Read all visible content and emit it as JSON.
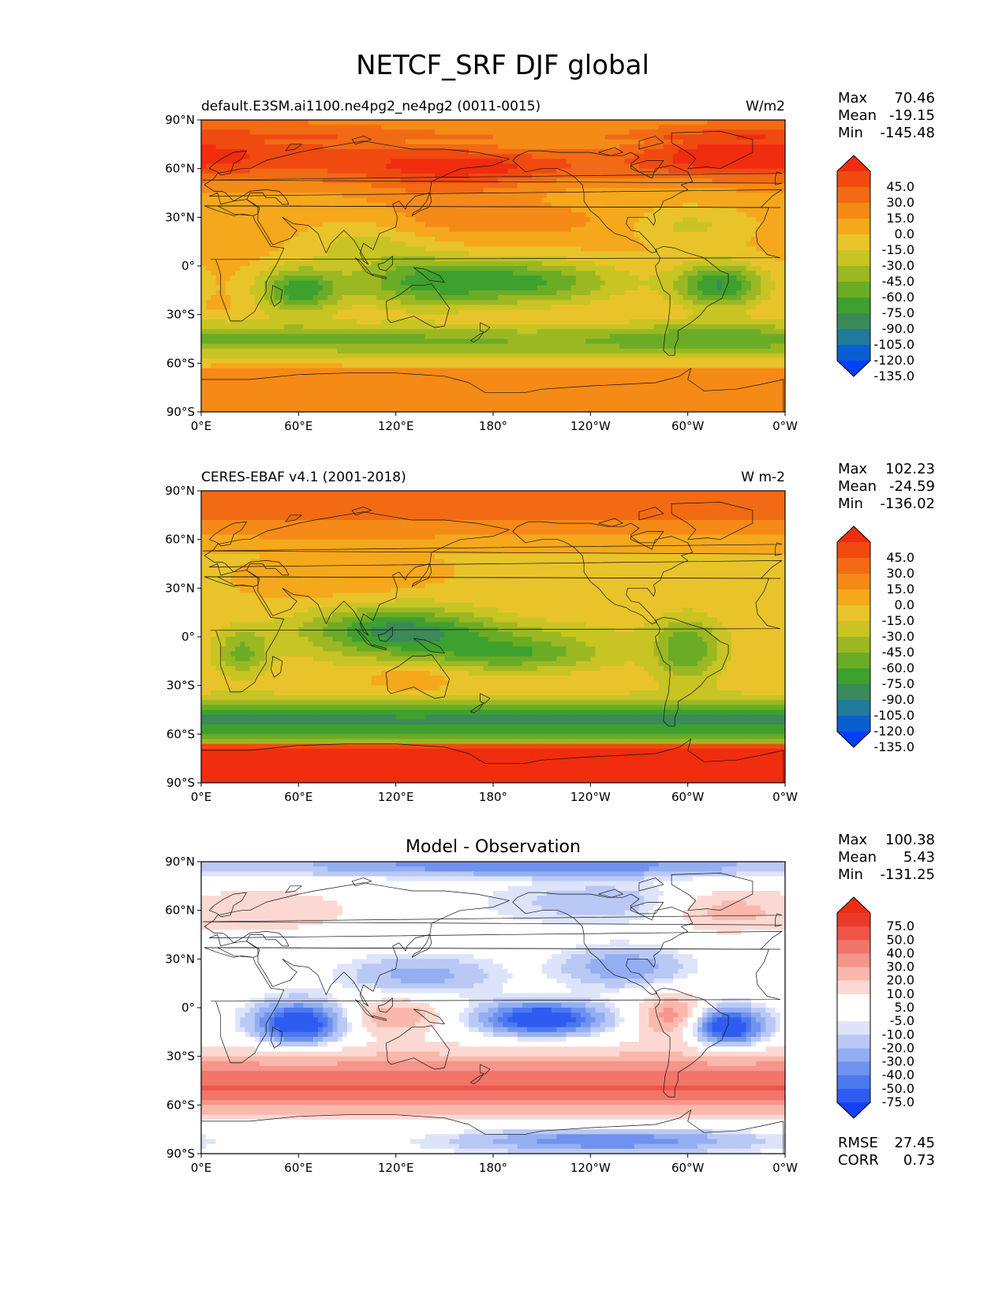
{
  "title": "NETCF_SRF DJF global",
  "colors": {
    "abs_levels": [
      "#0040ff",
      "#0a5fd0",
      "#1f7a9c",
      "#3a8a5a",
      "#3ea02e",
      "#6aac26",
      "#9bb823",
      "#c8c423",
      "#e8c42a",
      "#f5a81c",
      "#f58a17",
      "#f26a14",
      "#f04a11",
      "#f02d0e"
    ],
    "diff_levels": [
      "#1440f5",
      "#2f5cf0",
      "#4c78ee",
      "#6f92ef",
      "#94aef2",
      "#b9c8f5",
      "#dde4fa",
      "#ffffff",
      "#ffffff",
      "#fbd9d2",
      "#f9b8ab",
      "#f6958a",
      "#f2756a",
      "#ef5548",
      "#ec3a2a",
      "#f02d0e"
    ]
  },
  "panels": [
    {
      "id": "model",
      "left_title": "default.E3SM.ai1100.ne4pg2_ne4pg2 (0011-0015)",
      "right_title": "W/m2",
      "center_title": "",
      "stats": [
        [
          "Max",
          "70.46"
        ],
        [
          "Mean",
          "-19.15"
        ],
        [
          "Min",
          "-145.48"
        ]
      ],
      "extra_stats": [],
      "colorbar_labels": [
        "45.0",
        "30.0",
        "15.0",
        "0.0",
        "-15.0",
        "-30.0",
        "-45.0",
        "-60.0",
        "-75.0",
        "-90.0",
        "-105.0",
        "-120.0",
        "-135.0"
      ]
    },
    {
      "id": "obs",
      "left_title": "CERES-EBAF v4.1 (2001-2018)",
      "right_title": "W m-2",
      "center_title": "",
      "stats": [
        [
          "Max",
          "102.23"
        ],
        [
          "Mean",
          "-24.59"
        ],
        [
          "Min",
          "-136.02"
        ]
      ],
      "extra_stats": [],
      "colorbar_labels": [
        "45.0",
        "30.0",
        "15.0",
        "0.0",
        "-15.0",
        "-30.0",
        "-45.0",
        "-60.0",
        "-75.0",
        "-90.0",
        "-105.0",
        "-120.0",
        "-135.0"
      ]
    },
    {
      "id": "diff",
      "left_title": "",
      "right_title": "",
      "center_title": "Model - Observation",
      "stats": [
        [
          "Max",
          "100.38"
        ],
        [
          "Mean",
          "5.43"
        ],
        [
          "Min",
          "-131.25"
        ]
      ],
      "extra_stats": [
        [
          "RMSE",
          "27.45"
        ],
        [
          "CORR",
          "0.73"
        ]
      ],
      "colorbar_labels": [
        "75.0",
        "50.0",
        "40.0",
        "30.0",
        "20.0",
        "10.0",
        "5.0",
        "-5.0",
        "-10.0",
        "-20.0",
        "-30.0",
        "-40.0",
        "-50.0",
        "-75.0"
      ]
    }
  ],
  "axes": {
    "x_ticks": [
      "0°E",
      "60°E",
      "120°E",
      "180°",
      "120°W",
      "60°W",
      "0°W"
    ],
    "y_ticks": [
      "90°N",
      "60°N",
      "30°N",
      "0°",
      "30°S",
      "60°S",
      "90°S"
    ]
  },
  "chart_data": [
    {
      "type": "heatmap",
      "name": "model",
      "x_range": [
        0,
        360
      ],
      "y_range": [
        -90,
        90
      ],
      "levels": [
        -135,
        -120,
        -105,
        -90,
        -75,
        -60,
        -45,
        -30,
        -15,
        0,
        15,
        30,
        45
      ],
      "value_range": [
        -145.48,
        70.46
      ],
      "mean": -19.15
    },
    {
      "type": "heatmap",
      "name": "obs",
      "x_range": [
        0,
        360
      ],
      "y_range": [
        -90,
        90
      ],
      "levels": [
        -135,
        -120,
        -105,
        -90,
        -75,
        -60,
        -45,
        -30,
        -15,
        0,
        15,
        30,
        45
      ],
      "value_range": [
        -136.02,
        102.23
      ],
      "mean": -24.59
    },
    {
      "type": "heatmap",
      "name": "diff",
      "x_range": [
        0,
        360
      ],
      "y_range": [
        -90,
        90
      ],
      "levels": [
        -75,
        -50,
        -40,
        -30,
        -20,
        -10,
        -5,
        5,
        10,
        20,
        30,
        40,
        50,
        75
      ],
      "value_range": [
        -131.25,
        100.38
      ],
      "mean": 5.43,
      "rmse": 27.45,
      "corr": 0.73
    }
  ]
}
